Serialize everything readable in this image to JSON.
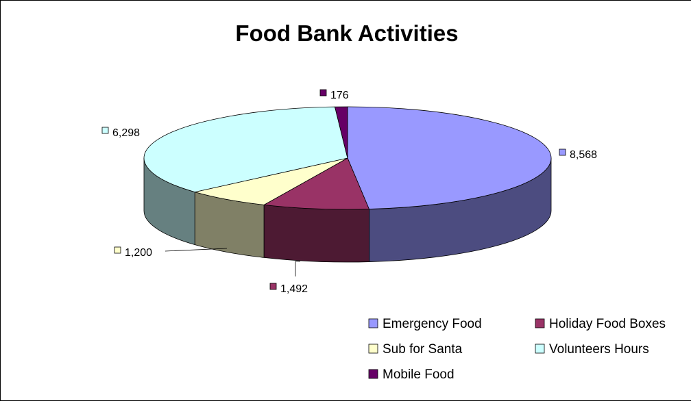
{
  "chart_data": {
    "type": "pie",
    "variant": "3d",
    "title": "Food Bank Activities",
    "start_angle_deg": 90,
    "direction": "clockwise",
    "categories": [
      "Emergency Food",
      "Holiday Food Boxes",
      "Sub for Santa",
      "Volunteers Hours",
      "Mobile Food"
    ],
    "values": [
      8568,
      1492,
      1200,
      6298,
      176
    ],
    "data_labels": [
      "8,568",
      "1,492",
      "1,200",
      "6,298",
      "176"
    ],
    "colors": {
      "top": [
        "#9999FF",
        "#993366",
        "#FFFFCC",
        "#CCFFFF",
        "#660066"
      ],
      "side": [
        "#4C4C80",
        "#4D1A33",
        "#808066",
        "#668080",
        "#330033"
      ]
    },
    "legend": {
      "position": "bottom-right",
      "columns": 2,
      "order": [
        0,
        1,
        2,
        3,
        4
      ]
    }
  }
}
